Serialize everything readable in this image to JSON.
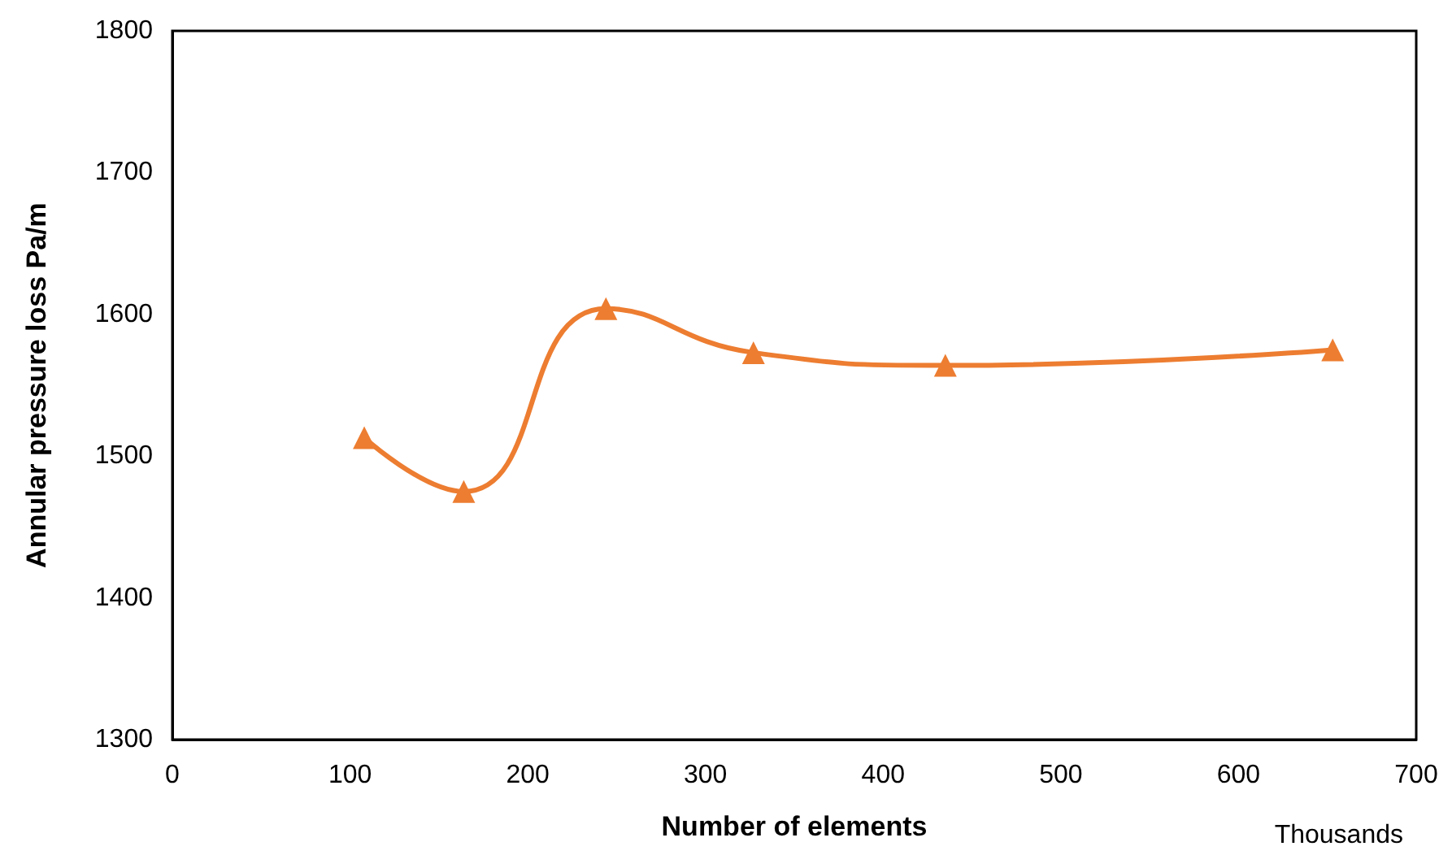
{
  "chart_data": {
    "type": "line",
    "xlabel": "Number of elements",
    "ylabel": "Annular pressure loss Pa/m",
    "annotations": [
      "Thousands"
    ],
    "x": [
      108,
      164,
      244,
      327,
      435,
      653
    ],
    "series": [
      {
        "color": "#ed7d31",
        "values": [
          1513,
          1475,
          1604,
          1573,
          1564,
          1575
        ]
      }
    ],
    "xlim": [
      0,
      700
    ],
    "xticks": [
      0,
      100,
      200,
      300,
      400,
      500,
      600,
      700
    ],
    "ylim": [
      1300,
      1800
    ],
    "yticks": [
      1300,
      1400,
      1500,
      1600,
      1700,
      1800
    ],
    "grid": false,
    "marker": "triangle",
    "line_style": "solid"
  }
}
